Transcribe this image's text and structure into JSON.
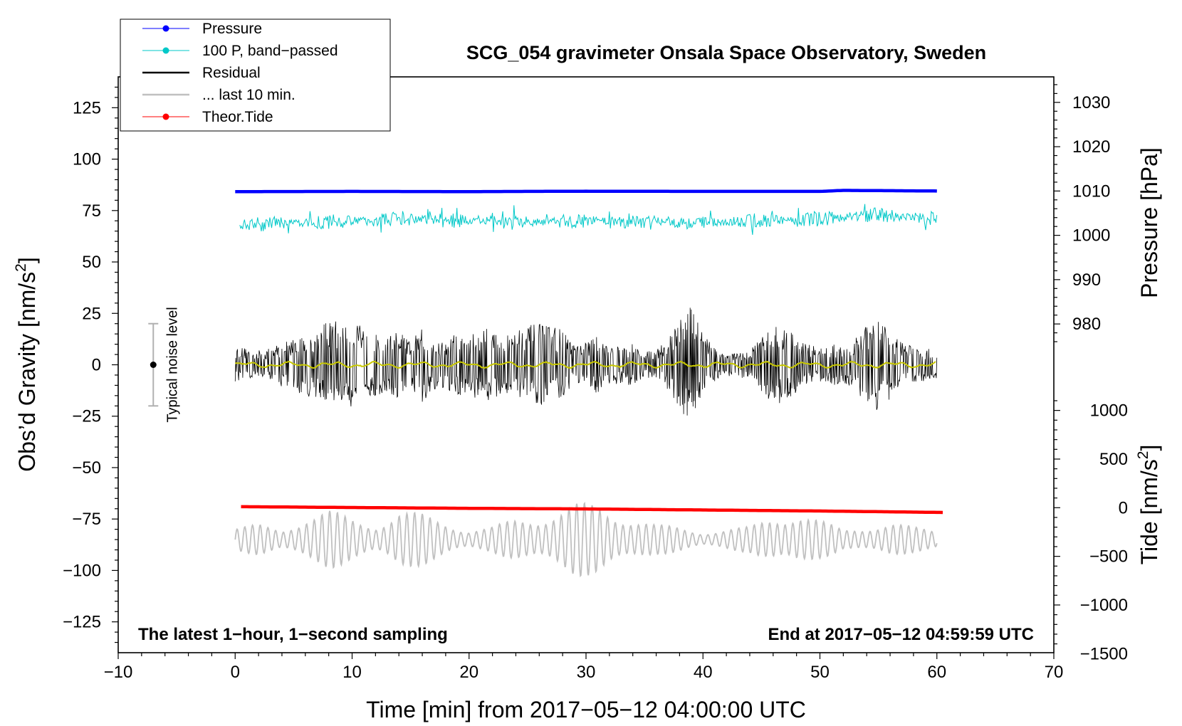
{
  "chart_data": {
    "type": "line",
    "title": "SCG_054 gravimeter Onsala Space Observatory, Sweden",
    "xlabel": "Time [min] from 2017−05−12 04:00:00 UTC",
    "ylabel_left_prefix": "Obs’d Gravity [nm/s",
    "ylabel_left_sup": "2",
    "ylabel_left_suffix": "]",
    "ylabel_pressure": "Pressure [hPa]",
    "ylabel_tide_prefix": "Tide [nm/s",
    "ylabel_tide_sup": "2",
    "ylabel_tide_suffix": "]",
    "xlim": [
      -10,
      70
    ],
    "ylim": [
      -140,
      140
    ],
    "x_ticks": [
      {
        "value": -10,
        "label": "−10"
      },
      {
        "value": 0,
        "label": "0"
      },
      {
        "value": 10,
        "label": "10"
      },
      {
        "value": 20,
        "label": "20"
      },
      {
        "value": 30,
        "label": "30"
      },
      {
        "value": 40,
        "label": "40"
      },
      {
        "value": 50,
        "label": "50"
      },
      {
        "value": 60,
        "label": "60"
      },
      {
        "value": 70,
        "label": "70"
      }
    ],
    "y_ticks": [
      {
        "value": 125,
        "label": "125"
      },
      {
        "value": 100,
        "label": "100"
      },
      {
        "value": 75,
        "label": "75"
      },
      {
        "value": 50,
        "label": "50"
      },
      {
        "value": 25,
        "label": "25"
      },
      {
        "value": 0,
        "label": "0"
      },
      {
        "value": -25,
        "label": "−25"
      },
      {
        "value": -50,
        "label": "−50"
      },
      {
        "value": -75,
        "label": "−75"
      },
      {
        "value": -100,
        "label": "−100"
      },
      {
        "value": -125,
        "label": "−125"
      }
    ],
    "pressure_axis": {
      "scale_gravity_per_hPa": 2.155,
      "offset_hPa": 1010,
      "offset_gravity": 84.5,
      "ticks": [
        {
          "value": 1030,
          "label": "1030"
        },
        {
          "value": 1020,
          "label": "1020"
        },
        {
          "value": 1010,
          "label": "1010"
        },
        {
          "value": 1000,
          "label": "1000"
        },
        {
          "value": 990,
          "label": "990"
        },
        {
          "value": 980,
          "label": "980"
        }
      ]
    },
    "tide_axis": {
      "scale_gravity_per_unit": 0.0473,
      "offset_gravity": -69.5,
      "ticks": [
        {
          "value": 1000,
          "label": "1000"
        },
        {
          "value": 500,
          "label": "500"
        },
        {
          "value": 0,
          "label": "0"
        },
        {
          "value": -500,
          "label": "−500"
        },
        {
          "value": -1000,
          "label": "−1000"
        },
        {
          "value": -1500,
          "label": "−1500"
        }
      ]
    },
    "series": [
      {
        "name": "Pressure",
        "color": "#0000ff",
        "style": "line-dot",
        "x": [
          0,
          10,
          20,
          30,
          40,
          50,
          52,
          60
        ],
        "y": [
          84.2,
          84.3,
          84.2,
          84.4,
          84.3,
          84.3,
          84.8,
          84.5
        ]
      },
      {
        "name": "100 P, band−passed",
        "color": "#00c8c8",
        "style": "line-dot",
        "x": [
          0,
          5,
          10,
          15,
          20,
          25,
          30,
          35,
          40,
          45,
          50,
          55,
          60
        ],
        "y": [
          68,
          69,
          70,
          71,
          70,
          69,
          70,
          70,
          69,
          70,
          71,
          73,
          71
        ]
      },
      {
        "name": "Residual",
        "color": "#000000",
        "style": "line",
        "x": [
          0,
          10,
          20,
          30,
          40,
          50,
          60
        ],
        "y": [
          0,
          0,
          0,
          0,
          0,
          0,
          0
        ]
      },
      {
        "name": "... last 10 min.",
        "color": "#c0c0c0",
        "style": "line",
        "x": [
          0,
          10,
          20,
          30,
          40,
          50,
          60
        ],
        "y": [
          -85,
          -85,
          -85,
          -85,
          -85,
          -85,
          -85
        ]
      },
      {
        "name": "Theor.Tide",
        "color": "#ff0000",
        "style": "line-dot",
        "x": [
          0.5,
          10,
          20,
          30,
          40,
          50,
          60.5
        ],
        "y": [
          -69,
          -69.4,
          -69.8,
          -70.1,
          -70.6,
          -71.1,
          -71.8
        ]
      }
    ],
    "residual_smooth": {
      "color": "#c8c800"
    },
    "residual_envelope": {
      "x": [
        0,
        1,
        2,
        3,
        4,
        5,
        6,
        7,
        8,
        8.5,
        9,
        10,
        10.5,
        11,
        12,
        13,
        14,
        15,
        16,
        17,
        18,
        19,
        20,
        21,
        22,
        23,
        24,
        25,
        26,
        27,
        28,
        29,
        30,
        31,
        32,
        33,
        34,
        35,
        36,
        37,
        38,
        39,
        40,
        41,
        42,
        43,
        44,
        45,
        46,
        47,
        48,
        49,
        50,
        51,
        52,
        53,
        54,
        55,
        56,
        57,
        58,
        59,
        60
      ],
      "amp": [
        9,
        8,
        7,
        8,
        11,
        13,
        15,
        18,
        21,
        22,
        19,
        21,
        23,
        19,
        15,
        14,
        17,
        11,
        19,
        13,
        12,
        16,
        13,
        19,
        17,
        13,
        18,
        19,
        20,
        19,
        17,
        9,
        11,
        14,
        10,
        9,
        11,
        6,
        8,
        12,
        22,
        29,
        17,
        8,
        6,
        6,
        7,
        13,
        20,
        18,
        14,
        10,
        8,
        10,
        9,
        13,
        19,
        23,
        17,
        11,
        9,
        8,
        7
      ]
    },
    "last10_envelope": {
      "x": [
        0,
        2,
        4,
        6,
        8,
        10,
        12,
        14,
        16,
        18,
        20,
        22,
        24,
        26,
        28,
        29,
        30,
        31,
        32,
        34,
        36,
        38,
        40,
        42,
        44,
        46,
        48,
        50,
        52,
        54,
        56,
        58,
        60
      ],
      "amp": [
        6,
        7,
        5,
        12,
        14,
        10,
        8,
        14,
        12,
        9,
        5,
        6,
        10,
        12,
        15,
        17,
        17,
        17,
        15,
        11,
        7,
        6,
        4,
        5,
        6,
        12,
        14,
        9,
        5,
        7,
        8,
        6,
        5
      ]
    },
    "noise_bar": {
      "x": -7,
      "center": 0,
      "half_range": 20,
      "label": "Typical noise level"
    },
    "annotations": {
      "bottom_left": "The latest 1−hour, 1−second sampling",
      "bottom_right": "End at 2017−05−12 04:59:59 UTC"
    },
    "legend_position": "top-left"
  }
}
